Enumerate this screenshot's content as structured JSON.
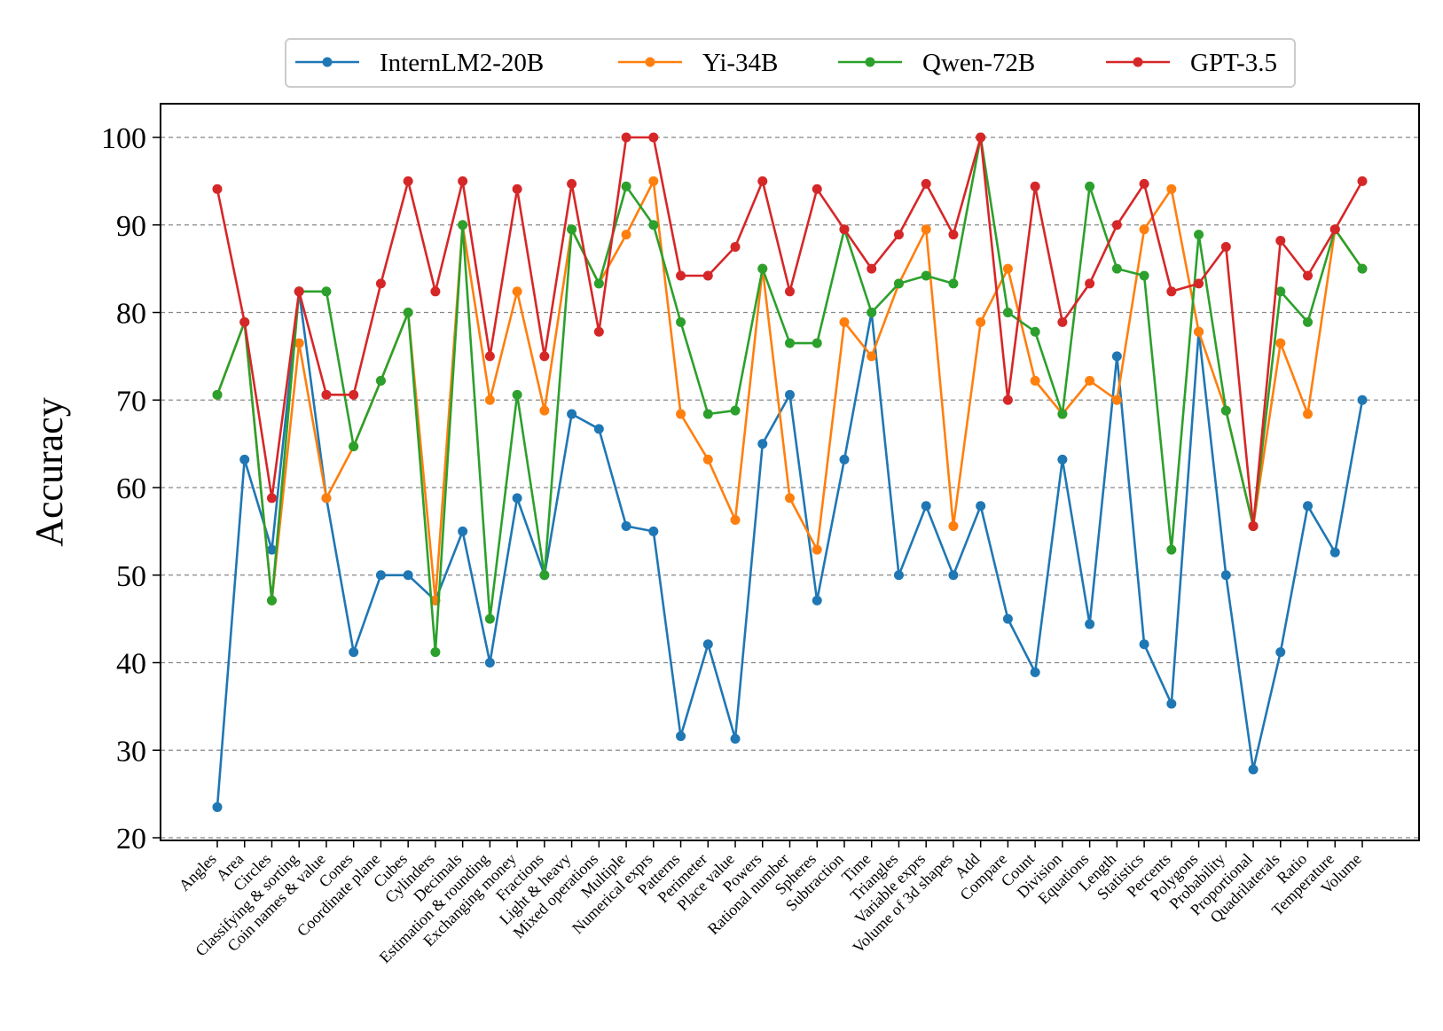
{
  "chart_data": {
    "type": "line",
    "ylabel": "Accuracy",
    "xlabel": "",
    "ylim": [
      20,
      100
    ],
    "yticks": [
      20,
      30,
      40,
      50,
      60,
      70,
      80,
      90,
      100
    ],
    "grid": "horizontal dashed",
    "legend_position": "top-center",
    "categories": [
      "Angles",
      "Area",
      "Circles",
      "Classifying & sorting",
      "Coin names & value",
      "Cones",
      "Coordinate plane",
      "Cubes",
      "Cylinders",
      "Decimals",
      "Estimation & rounding",
      "Exchanging money",
      "Fractions",
      "Light & heavy",
      "Mixed operations",
      "Multiple",
      "Numerical exprs",
      "Patterns",
      "Perimeter",
      "Place value",
      "Powers",
      "Rational number",
      "Spheres",
      "Subtraction",
      "Time",
      "Triangles",
      "Variable exprs",
      "Volume of 3d shapes",
      "Add",
      "Compare",
      "Count",
      "Division",
      "Equations",
      "Length",
      "Statistics",
      "Percents",
      "Polygons",
      "Probability",
      "Proportional",
      "Quadrilaterals",
      "Ratio",
      "Temperature",
      "Volume"
    ],
    "series": [
      {
        "name": "InternLM2-20B",
        "color": "#1f77b4",
        "values": [
          23.5,
          63.2,
          52.9,
          82.4,
          58.8,
          41.2,
          50.0,
          50.0,
          47.1,
          55.0,
          40.0,
          58.8,
          50.0,
          68.4,
          66.7,
          55.6,
          55.0,
          31.6,
          42.1,
          31.3,
          65.0,
          70.6,
          47.1,
          63.2,
          80.0,
          50.0,
          57.9,
          50.0,
          57.9,
          45.0,
          38.9,
          63.2,
          44.4,
          75.0,
          42.1,
          35.3,
          77.8,
          50.0,
          27.8,
          41.2,
          57.9,
          52.6,
          70.0
        ]
      },
      {
        "name": "Yi-34B",
        "color": "#ff7f0e",
        "values": [
          70.6,
          78.9,
          47.1,
          76.5,
          58.8,
          64.7,
          72.2,
          80.0,
          47.1,
          90.0,
          70.0,
          82.4,
          68.8,
          89.5,
          83.3,
          88.9,
          95.0,
          68.4,
          63.2,
          56.3,
          85.0,
          58.8,
          52.9,
          78.9,
          75.0,
          83.3,
          89.5,
          55.6,
          78.9,
          85.0,
          72.2,
          68.4,
          72.2,
          70.0,
          89.5,
          94.1,
          77.8,
          68.8,
          55.6,
          76.5,
          68.4,
          89.5,
          85.0
        ]
      },
      {
        "name": "Qwen-72B",
        "color": "#2ca02c",
        "values": [
          70.6,
          78.9,
          47.1,
          82.4,
          82.4,
          64.7,
          72.2,
          80.0,
          41.2,
          90.0,
          45.0,
          70.6,
          50.0,
          89.5,
          83.3,
          94.4,
          90.0,
          78.9,
          68.4,
          68.8,
          85.0,
          76.5,
          76.5,
          89.5,
          80.0,
          83.3,
          84.2,
          83.3,
          100.0,
          80.0,
          77.8,
          68.4,
          94.4,
          85.0,
          84.2,
          52.9,
          88.9,
          68.8,
          55.6,
          82.4,
          78.9,
          89.5,
          85.0
        ]
      },
      {
        "name": "GPT-3.5",
        "color": "#d62728",
        "values": [
          94.1,
          78.9,
          58.8,
          82.4,
          70.6,
          70.6,
          83.3,
          95.0,
          82.4,
          95.0,
          75.0,
          94.1,
          75.0,
          94.7,
          77.8,
          100.0,
          100.0,
          84.2,
          84.2,
          87.5,
          95.0,
          82.4,
          94.1,
          89.5,
          85.0,
          88.9,
          94.7,
          88.9,
          100.0,
          70.0,
          94.4,
          78.9,
          83.3,
          90.0,
          94.7,
          82.4,
          83.3,
          87.5,
          55.6,
          88.2,
          84.2,
          89.5,
          95.0
        ]
      }
    ]
  }
}
